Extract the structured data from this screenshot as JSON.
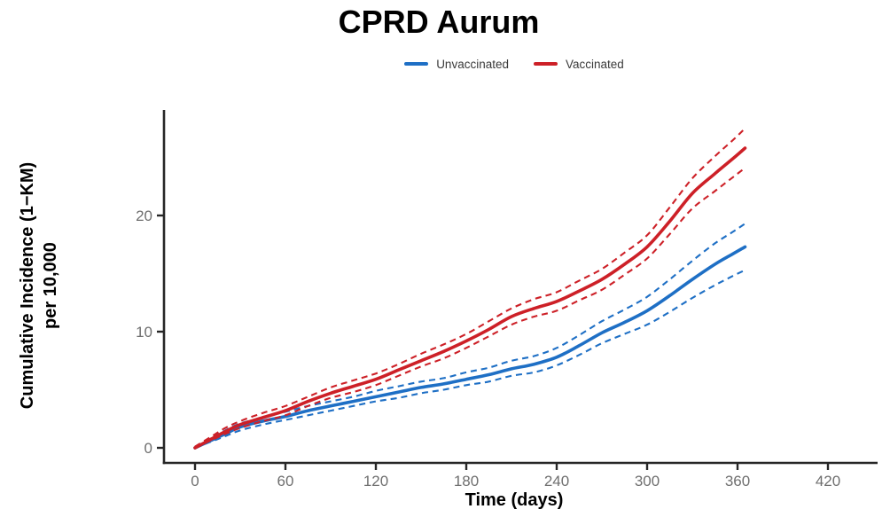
{
  "title": "CPRD Aurum",
  "legend": {
    "items": [
      {
        "label": "Unvaccinated",
        "color": "#1e6fc5"
      },
      {
        "label": "Vaccinated",
        "color": "#cd2027"
      }
    ]
  },
  "axes": {
    "x_label": "Time (days)",
    "y_label_line1": "Cumulative Incidence (1−KM)",
    "y_label_line2": "per 10,000",
    "x_ticks": [
      0,
      60,
      120,
      180,
      240,
      300,
      360,
      420
    ],
    "y_ticks": [
      0,
      10,
      20
    ],
    "axis_color": "#262626",
    "tick_label_color": "#6f6f6f"
  },
  "chart_data": {
    "type": "line",
    "title": "CPRD Aurum",
    "xlabel": "Time (days)",
    "ylabel": "Cumulative Incidence (1−KM) per 10,000",
    "xlim": [
      0,
      450
    ],
    "ylim": [
      0,
      29
    ],
    "grid": false,
    "legend_position": "top-center",
    "x": [
      0,
      10,
      20,
      30,
      45,
      60,
      75,
      90,
      105,
      120,
      135,
      150,
      165,
      180,
      195,
      210,
      225,
      240,
      255,
      270,
      285,
      300,
      315,
      330,
      345,
      357,
      365
    ],
    "series": [
      {
        "name": "Unvaccinated",
        "color": "#1e6fc5",
        "style": "solid-with-dashed-ci",
        "values": [
          0,
          0.6,
          1.2,
          1.8,
          2.3,
          2.7,
          3.2,
          3.6,
          4.0,
          4.4,
          4.8,
          5.2,
          5.5,
          5.9,
          6.3,
          6.8,
          7.2,
          7.8,
          8.8,
          9.9,
          10.8,
          11.8,
          13.1,
          14.5,
          15.8,
          16.7,
          17.3
        ],
        "ci_upper": [
          0.1,
          0.8,
          1.5,
          2.1,
          2.6,
          3.1,
          3.6,
          4.0,
          4.4,
          4.9,
          5.3,
          5.7,
          6.0,
          6.5,
          6.9,
          7.5,
          7.9,
          8.6,
          9.7,
          10.9,
          11.9,
          13.0,
          14.5,
          16.1,
          17.6,
          18.6,
          19.3
        ],
        "ci_lower": [
          0,
          0.5,
          1.0,
          1.5,
          2.0,
          2.4,
          2.8,
          3.2,
          3.6,
          4.0,
          4.3,
          4.7,
          5.0,
          5.4,
          5.7,
          6.2,
          6.5,
          7.1,
          8.0,
          9.0,
          9.8,
          10.6,
          11.7,
          12.9,
          14.0,
          14.8,
          15.3
        ]
      },
      {
        "name": "Vaccinated",
        "color": "#cd2027",
        "style": "solid-with-dashed-ci",
        "values": [
          0,
          0.7,
          1.4,
          2.0,
          2.6,
          3.2,
          4.0,
          4.7,
          5.3,
          5.9,
          6.7,
          7.5,
          8.3,
          9.2,
          10.2,
          11.3,
          12.0,
          12.6,
          13.5,
          14.5,
          15.8,
          17.3,
          19.5,
          21.9,
          23.6,
          24.9,
          25.8
        ],
        "ci_upper": [
          0.1,
          0.9,
          1.7,
          2.3,
          3.0,
          3.6,
          4.4,
          5.2,
          5.8,
          6.4,
          7.2,
          8.1,
          8.9,
          9.8,
          10.9,
          12.0,
          12.8,
          13.4,
          14.4,
          15.4,
          16.8,
          18.3,
          20.7,
          23.2,
          25.1,
          26.5,
          27.5
        ],
        "ci_lower": [
          0,
          0.6,
          1.2,
          1.7,
          2.3,
          2.8,
          3.6,
          4.3,
          4.8,
          5.4,
          6.2,
          7.0,
          7.7,
          8.6,
          9.6,
          10.6,
          11.3,
          11.8,
          12.7,
          13.6,
          14.9,
          16.3,
          18.4,
          20.6,
          22.1,
          23.3,
          24.1
        ]
      }
    ]
  }
}
